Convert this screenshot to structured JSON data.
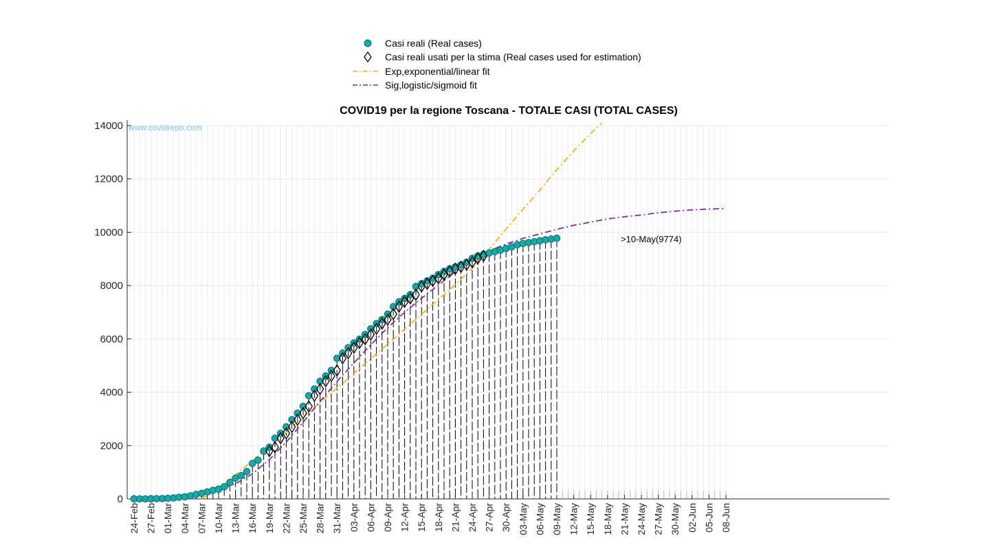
{
  "chart_data": {
    "type": "line",
    "title": "COVID19 per la regione Toscana - TOTALE CASI (TOTAL CASES)",
    "watermark": "www.covidrepo.com",
    "xlabel": "",
    "ylabel": "",
    "ylim": [
      0,
      14000
    ],
    "yticks": [
      0,
      2000,
      4000,
      6000,
      8000,
      10000,
      12000,
      14000
    ],
    "x_start_date": "2020-02-24",
    "x_end_date": "2020-06-08",
    "xtick_labels": [
      "24-Feb",
      "27-Feb",
      "01-Mar",
      "04-Mar",
      "07-Mar",
      "10-Mar",
      "13-Mar",
      "16-Mar",
      "19-Mar",
      "22-Mar",
      "25-Mar",
      "28-Mar",
      "31-Mar",
      "03-Apr",
      "06-Apr",
      "09-Apr",
      "12-Apr",
      "15-Apr",
      "18-Apr",
      "21-Apr",
      "24-Apr",
      "27-Apr",
      "30-Apr",
      "03-May",
      "06-May",
      "09-May",
      "12-May",
      "15-May",
      "18-May",
      "21-May",
      "24-May",
      "27-May",
      "30-May",
      "02-Jun",
      "05-Jun",
      "08-Jun"
    ],
    "grid": true,
    "legend": {
      "placement": "top-center",
      "entries": [
        {
          "label": "Casi reali (Real cases)",
          "marker": "circle",
          "color": "#17a8a8"
        },
        {
          "label": "Casi reali usati per la stima (Real cases used for estimation)",
          "marker": "diamond",
          "color": "#000000"
        },
        {
          "label": "Exp,exponential/linear fit",
          "line": "dash-dot",
          "color": "#edb120"
        },
        {
          "label": "Sig,logistic/sigmoid fit",
          "line": "dash-dot",
          "color": "#7e2f8e"
        }
      ]
    },
    "annotation": ">10-May(9774)",
    "series": [
      {
        "name": "Casi reali (Real cases)",
        "x_start": "2020-02-24",
        "values": [
          0,
          0,
          0,
          2,
          8,
          13,
          19,
          37,
          61,
          79,
          113,
          166,
          208,
          264,
          320,
          364,
          454,
          615,
          781,
          869,
          1025,
          1330,
          1450,
          1793,
          1938,
          2277,
          2461,
          2700,
          2972,
          3216,
          3470,
          3870,
          4122,
          4412,
          4608,
          4818,
          5273,
          5467,
          5671,
          5847,
          5990,
          6166,
          6378,
          6575,
          6723,
          6932,
          7210,
          7390,
          7519,
          7661,
          7966,
          8069,
          8177,
          8274,
          8409,
          8533,
          8627,
          8700,
          8780,
          8874,
          9020,
          9111,
          9170,
          9222,
          9271,
          9326,
          9392,
          9454,
          9530,
          9580,
          9611,
          9643,
          9680,
          9717,
          9745,
          9774
        ]
      },
      {
        "name": "Casi reali usati per la stima (Real cases used for estimation)",
        "x_start": "2020-03-19",
        "values": [
          1793,
          1938,
          2277,
          2461,
          2700,
          2972,
          3216,
          3470,
          3870,
          4122,
          4412,
          4608,
          4818,
          5273,
          5467,
          5671,
          5847,
          5990,
          6166,
          6378,
          6575,
          6723,
          6932,
          7210,
          7390,
          7519,
          7661,
          7966,
          8069,
          8177,
          8274,
          8409,
          8533,
          8627,
          8700,
          8780,
          8874,
          9020,
          9111
        ]
      },
      {
        "name": "Exp,exponential/linear fit",
        "points": [
          [
            "2020-03-07",
            0
          ],
          [
            "2020-03-10",
            370
          ],
          [
            "2020-03-13",
            900
          ],
          [
            "2020-03-16",
            1430
          ],
          [
            "2020-03-19",
            1970
          ],
          [
            "2020-03-22",
            2500
          ],
          [
            "2020-03-25",
            3060
          ],
          [
            "2020-03-28",
            3620
          ],
          [
            "2020-03-31",
            4150
          ],
          [
            "2020-04-03",
            4700
          ],
          [
            "2020-04-06",
            5260
          ],
          [
            "2020-04-09",
            5800
          ],
          [
            "2020-04-12",
            6370
          ],
          [
            "2020-04-15",
            6920
          ],
          [
            "2020-04-18",
            7480
          ],
          [
            "2020-04-21",
            8030
          ],
          [
            "2020-04-24",
            8650
          ],
          [
            "2020-04-27",
            9360
          ],
          [
            "2020-04-30",
            10120
          ],
          [
            "2020-05-03",
            10860
          ],
          [
            "2020-05-06",
            11580
          ],
          [
            "2020-05-09",
            12350
          ],
          [
            "2020-05-12",
            13050
          ],
          [
            "2020-05-15",
            13700
          ],
          [
            "2020-05-17",
            14100
          ]
        ]
      },
      {
        "name": "Sig,logistic/sigmoid fit",
        "points": [
          [
            "2020-02-24",
            0
          ],
          [
            "2020-03-01",
            20
          ],
          [
            "2020-03-04",
            80
          ],
          [
            "2020-03-07",
            170
          ],
          [
            "2020-03-10",
            330
          ],
          [
            "2020-03-13",
            570
          ],
          [
            "2020-03-16",
            940
          ],
          [
            "2020-03-19",
            1470
          ],
          [
            "2020-03-22",
            2130
          ],
          [
            "2020-03-25",
            2880
          ],
          [
            "2020-03-28",
            3650
          ],
          [
            "2020-03-31",
            4400
          ],
          [
            "2020-04-03",
            5100
          ],
          [
            "2020-04-06",
            5780
          ],
          [
            "2020-04-09",
            6420
          ],
          [
            "2020-04-12",
            7000
          ],
          [
            "2020-04-15",
            7520
          ],
          [
            "2020-04-18",
            8020
          ],
          [
            "2020-04-21",
            8520
          ],
          [
            "2020-04-24",
            8960
          ],
          [
            "2020-04-27",
            9300
          ],
          [
            "2020-04-30",
            9560
          ],
          [
            "2020-05-03",
            9770
          ],
          [
            "2020-05-06",
            9940
          ],
          [
            "2020-05-09",
            10110
          ],
          [
            "2020-05-12",
            10260
          ],
          [
            "2020-05-15",
            10380
          ],
          [
            "2020-05-18",
            10500
          ],
          [
            "2020-05-21",
            10580
          ],
          [
            "2020-05-24",
            10650
          ],
          [
            "2020-05-27",
            10730
          ],
          [
            "2020-05-30",
            10790
          ],
          [
            "2020-06-02",
            10840
          ],
          [
            "2020-06-05",
            10870
          ],
          [
            "2020-06-08",
            10890
          ]
        ]
      }
    ]
  }
}
